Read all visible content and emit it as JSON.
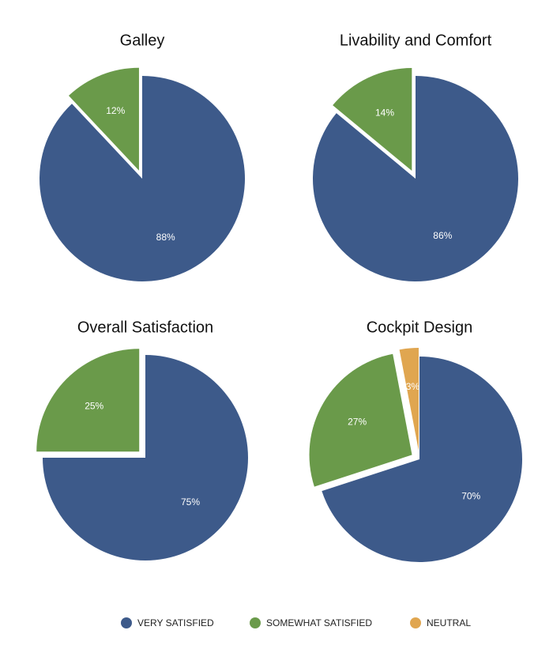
{
  "chart_data": [
    {
      "type": "pie",
      "title": "Galley",
      "categories": [
        "VERY SATISFIED",
        "SOMEWHAT SATISFIED"
      ],
      "values": [
        88,
        12
      ],
      "value_labels": [
        "88%",
        "12%"
      ],
      "colors": [
        "#3d5a8a",
        "#6a9a4a"
      ]
    },
    {
      "type": "pie",
      "title": "Livability and Comfort",
      "categories": [
        "VERY SATISFIED",
        "SOMEWHAT SATISFIED"
      ],
      "values": [
        86,
        14
      ],
      "value_labels": [
        "86%",
        "14%"
      ],
      "colors": [
        "#3d5a8a",
        "#6a9a4a"
      ]
    },
    {
      "type": "pie",
      "title": "Overall Satisfaction",
      "categories": [
        "VERY SATISFIED",
        "SOMEWHAT SATISFIED"
      ],
      "values": [
        75,
        25
      ],
      "value_labels": [
        "75%",
        "25%"
      ],
      "colors": [
        "#3d5a8a",
        "#6a9a4a"
      ]
    },
    {
      "type": "pie",
      "title": "Cockpit Design",
      "categories": [
        "VERY SATISFIED",
        "SOMEWHAT SATISFIED",
        "NEUTRAL"
      ],
      "values": [
        70,
        27,
        3
      ],
      "value_labels": [
        "70%",
        "27%",
        "3%"
      ],
      "colors": [
        "#3d5a8a",
        "#6a9a4a",
        "#e0a650"
      ]
    }
  ]
}
